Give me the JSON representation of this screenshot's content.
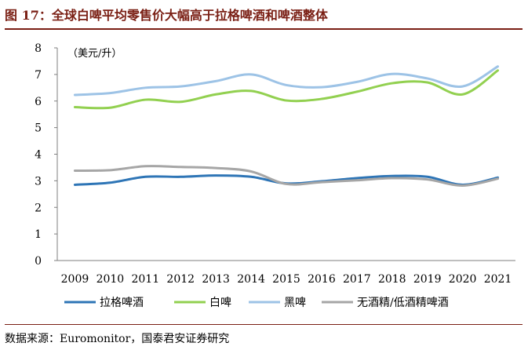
{
  "figure": {
    "title": "图 17：全球白啤平均零售价大幅高于拉格啤酒和啤酒整体",
    "source": "数据来源：Euromonitor，国泰君安证券研究"
  },
  "chart_data": {
    "type": "line",
    "title": "图 17：全球白啤平均零售价大幅高于拉格啤酒和啤酒整体",
    "unit_label": "（美元/升）",
    "xlabel": "",
    "ylabel": "美元/升",
    "x": [
      "2009",
      "2010",
      "2011",
      "2012",
      "2013",
      "2014",
      "2015",
      "2016",
      "2017",
      "2018",
      "2019",
      "2020",
      "2021"
    ],
    "ylim": [
      0,
      8
    ],
    "yticks": [
      "0",
      "1",
      "2",
      "3",
      "4",
      "5",
      "6",
      "7",
      "8"
    ],
    "grid": false,
    "legend_position": "bottom",
    "series": [
      {
        "name": "拉格啤酒",
        "color": "#2e75b6",
        "values": [
          2.85,
          2.93,
          3.15,
          3.15,
          3.2,
          3.15,
          2.9,
          2.98,
          3.1,
          3.18,
          3.15,
          2.85,
          3.12
        ]
      },
      {
        "name": "白啤",
        "color": "#92d050",
        "values": [
          5.77,
          5.75,
          6.05,
          5.97,
          6.25,
          6.38,
          6.02,
          6.08,
          6.35,
          6.67,
          6.7,
          6.25,
          7.15
        ]
      },
      {
        "name": "黑啤",
        "color": "#9dc3e6",
        "values": [
          6.23,
          6.3,
          6.5,
          6.55,
          6.75,
          7.0,
          6.6,
          6.52,
          6.72,
          7.02,
          6.85,
          6.55,
          7.3
        ]
      },
      {
        "name": "无酒精/低酒精啤酒",
        "color": "#a6a6a6",
        "values": [
          3.38,
          3.4,
          3.55,
          3.52,
          3.48,
          3.35,
          2.88,
          2.95,
          3.02,
          3.1,
          3.05,
          2.82,
          3.08
        ]
      }
    ]
  }
}
